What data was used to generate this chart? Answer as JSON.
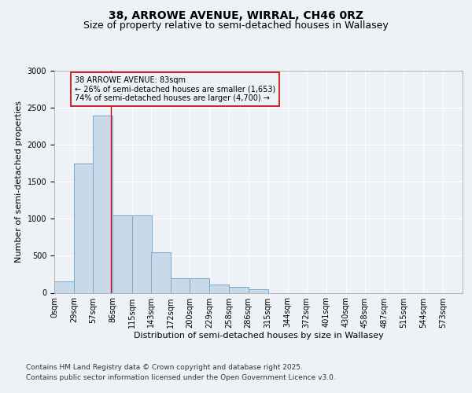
{
  "title_line1": "38, ARROWE AVENUE, WIRRAL, CH46 0RZ",
  "title_line2": "Size of property relative to semi-detached houses in Wallasey",
  "xlabel": "Distribution of semi-detached houses by size in Wallasey",
  "ylabel": "Number of semi-detached properties",
  "bar_color": "#c8d9ea",
  "bar_edge_color": "#7aaac8",
  "annotation_box_color": "#cc0000",
  "annotation_text": "38 ARROWE AVENUE: 83sqm\n← 26% of semi-detached houses are smaller (1,653)\n74% of semi-detached houses are larger (4,700) →",
  "property_line_x": 83,
  "categories": [
    "0sqm",
    "29sqm",
    "57sqm",
    "86sqm",
    "115sqm",
    "143sqm",
    "172sqm",
    "200sqm",
    "229sqm",
    "258sqm",
    "286sqm",
    "315sqm",
    "344sqm",
    "372sqm",
    "401sqm",
    "430sqm",
    "458sqm",
    "487sqm",
    "515sqm",
    "544sqm",
    "573sqm"
  ],
  "bin_edges": [
    0,
    29,
    57,
    86,
    115,
    143,
    172,
    200,
    229,
    258,
    286,
    315,
    344,
    372,
    401,
    430,
    458,
    487,
    515,
    544,
    573
  ],
  "values": [
    150,
    1750,
    2400,
    1050,
    1050,
    550,
    200,
    200,
    110,
    80,
    45,
    0,
    0,
    0,
    0,
    0,
    0,
    0,
    0,
    0
  ],
  "ylim": [
    0,
    3000
  ],
  "yticks": [
    0,
    500,
    1000,
    1500,
    2000,
    2500,
    3000
  ],
  "background_color": "#eef2f7",
  "plot_background": "#eef2f7",
  "grid_color": "#ffffff",
  "title_fontsize": 10,
  "subtitle_fontsize": 9,
  "axis_fontsize": 8,
  "tick_fontsize": 7,
  "annot_fontsize": 7,
  "footer_fontsize": 6.5,
  "footer_line1": "Contains HM Land Registry data © Crown copyright and database right 2025.",
  "footer_line2": "Contains public sector information licensed under the Open Government Licence v3.0."
}
